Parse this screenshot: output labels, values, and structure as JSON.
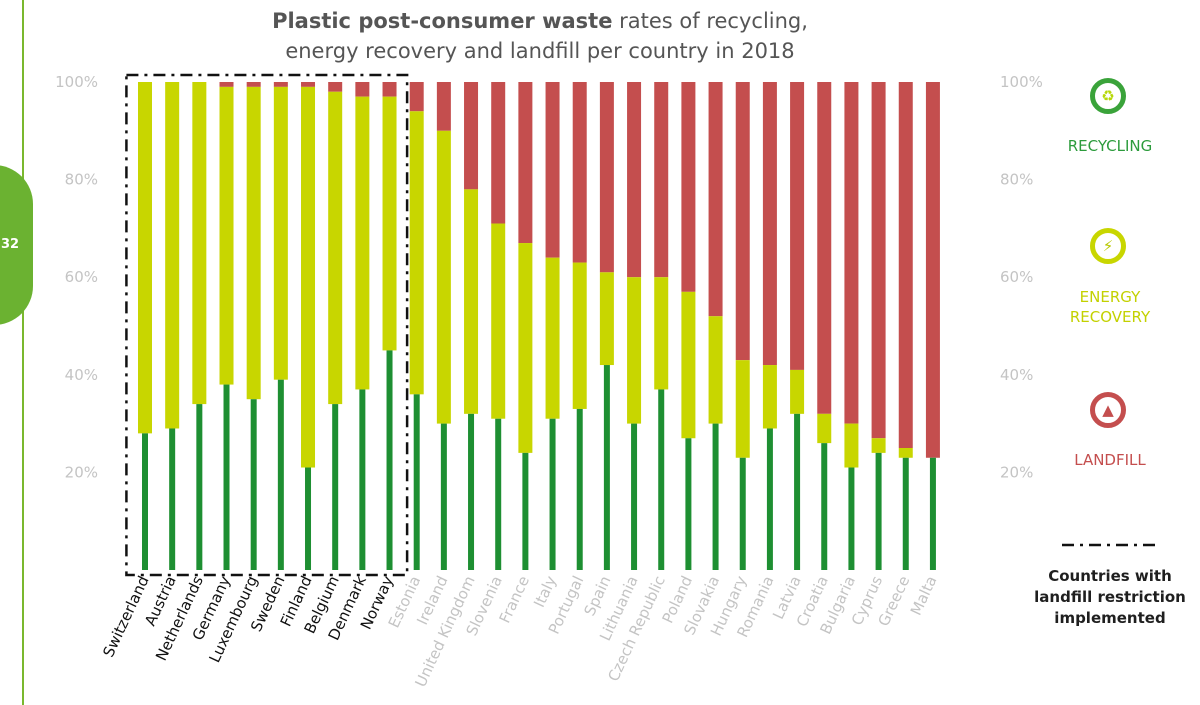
{
  "page": {
    "number": "32"
  },
  "chart_data": {
    "type": "bar",
    "stacked": true,
    "title_bold": "Plastic post-consumer waste",
    "title_rest": "rates of recycling,",
    "title_line2": "energy recovery and landfill per country in 2018",
    "ylim": [
      0,
      100
    ],
    "yticks": [
      "20%",
      "40%",
      "60%",
      "80%",
      "100%"
    ],
    "ytick_values": [
      20,
      40,
      60,
      80,
      100
    ],
    "grid": false,
    "categories": [
      "Switzerland",
      "Austria",
      "Netherlands",
      "Germany",
      "Luxembourg",
      "Sweden",
      "Finland",
      "Belgium",
      "Denmark",
      "Norway",
      "Estonia",
      "Ireland",
      "United Kingdom",
      "Slovenia",
      "France",
      "Italy",
      "Portugal",
      "Spain",
      "Lithuania",
      "Czech Republic",
      "Poland",
      "Slovakia",
      "Hungary",
      "Romania",
      "Latvia",
      "Croatia",
      "Bulgaria",
      "Cyprus",
      "Greece",
      "Malta"
    ],
    "restricted_count": 10,
    "series": [
      {
        "name": "RECYCLING",
        "color": "#1e8f32",
        "values": [
          28,
          29,
          34,
          38,
          35,
          39,
          21,
          34,
          37,
          45,
          36,
          30,
          32,
          31,
          24,
          31,
          33,
          42,
          30,
          37,
          27,
          30,
          23,
          29,
          32,
          26,
          21,
          24,
          23,
          23
        ]
      },
      {
        "name": "ENERGY RECOVERY",
        "color": "#c8d600",
        "values": [
          72,
          71,
          66,
          61,
          64,
          60,
          78,
          64,
          60,
          52,
          58,
          60,
          46,
          40,
          43,
          33,
          30,
          19,
          30,
          23,
          30,
          22,
          20,
          13,
          9,
          6,
          9,
          3,
          2,
          0
        ]
      },
      {
        "name": "LANDFILL",
        "color": "#c44e4e",
        "values": [
          0,
          0,
          0,
          1,
          1,
          1,
          1,
          2,
          3,
          3,
          6,
          10,
          22,
          29,
          33,
          36,
          37,
          39,
          40,
          40,
          43,
          48,
          57,
          58,
          59,
          68,
          70,
          73,
          75,
          77
        ]
      }
    ],
    "legend": {
      "placement": "right",
      "recycling": "RECYCLING",
      "energy_line1": "ENERGY",
      "energy_line2": "RECOVERY",
      "landfill": "LANDFILL"
    },
    "annotation": {
      "line1": "Countries with",
      "line2": "landfill restriction",
      "line3": "implemented"
    }
  },
  "colors": {
    "recycling": "#1e8f32",
    "energy": "#c8d600",
    "landfill": "#c44e4e",
    "axis_text": "#c4c4c4",
    "title": "#555555",
    "accent_green": "#6bb231"
  },
  "icons": {
    "recycling": "recycle-icon",
    "energy": "lightning-icon",
    "landfill": "landfill-truck-icon"
  }
}
